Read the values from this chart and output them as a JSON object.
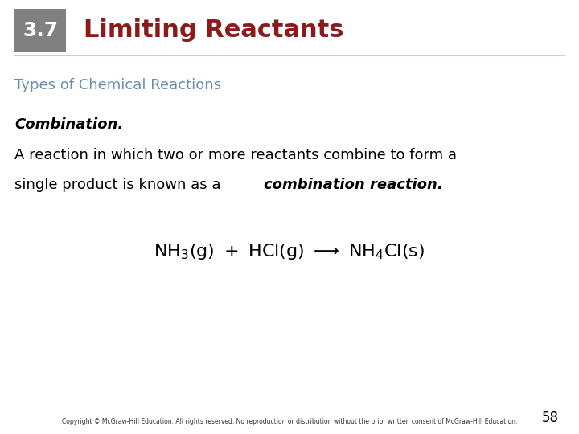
{
  "header_box_color": "#808080",
  "header_text": "3.7",
  "header_text_color": "#ffffff",
  "title_text": "Limiting Reactants",
  "title_color": "#8b1a1a",
  "section_heading": "Types of Chemical Reactions",
  "section_heading_color": "#6b8cae",
  "body_line1": "Combination.",
  "body_line2": "A reaction in which two or more reactants combine to form a",
  "body_line3": "single product is known as a ",
  "body_line3_bold": "combination reaction.",
  "body_color": "#000000",
  "copyright_text": "Copyright © McGraw-Hill Education. All rights reserved. No reproduction or distribution without the prior written consent of McGraw-Hill Education.",
  "page_number": "58",
  "bg_color": "#ffffff"
}
